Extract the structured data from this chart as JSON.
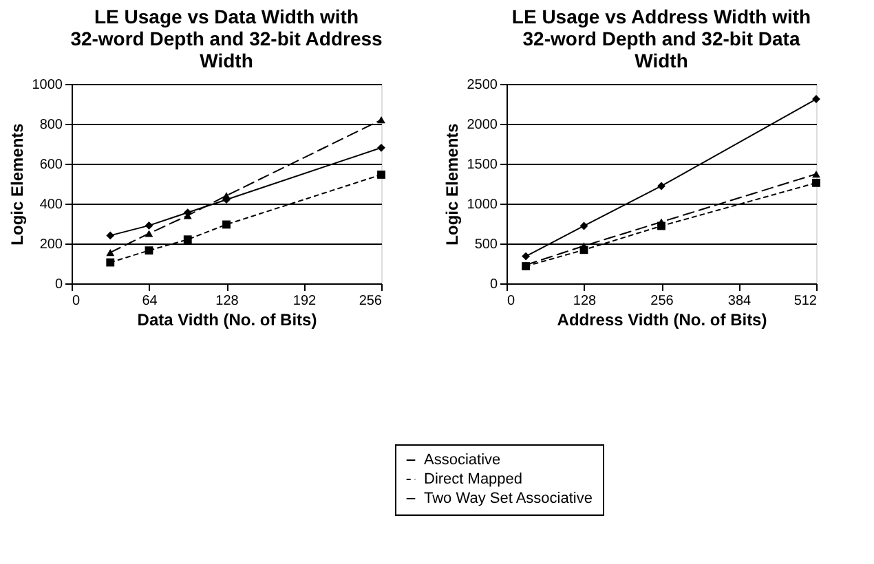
{
  "chart_data": [
    {
      "type": "line",
      "title": "LE Usage vs Data Width with 32-word Depth and 32-bit Address Width",
      "xlabel": "Data Vidth (No. of Bits)",
      "ylabel": "Logic Elements",
      "x": [
        32,
        64,
        96,
        128,
        256
      ],
      "xlim": [
        0,
        256
      ],
      "xticks": [
        0,
        64,
        128,
        192,
        256
      ],
      "ylim": [
        0,
        1000
      ],
      "yticks": [
        0,
        200,
        400,
        600,
        800,
        1000
      ],
      "grid": "y",
      "legend": "bottom",
      "series": [
        {
          "name": "Associative",
          "color": "#000000",
          "marker": "diamond",
          "line_style": "solid",
          "values": [
            240,
            290,
            355,
            420,
            680
          ]
        },
        {
          "name": "Direct Mapped",
          "color": "#000000",
          "marker": "square",
          "line_style": "dotted",
          "values": [
            105,
            165,
            220,
            295,
            545
          ]
        },
        {
          "name": "Two Way Set Associative",
          "color": "#000000",
          "marker": "triangle",
          "line_style": "dashed",
          "values": [
            155,
            250,
            340,
            440,
            820
          ]
        }
      ]
    },
    {
      "type": "line",
      "title": "LE Usage vs Address Width with 32-word Depth and 32-bit Data Width",
      "xlabel": "Address Vidth (No. of Bits)",
      "ylabel": "Logic Elements",
      "x": [
        32,
        128,
        256,
        512
      ],
      "xlim": [
        0,
        512
      ],
      "xticks": [
        0,
        128,
        256,
        384,
        512
      ],
      "ylim": [
        0,
        2500
      ],
      "yticks": [
        0,
        500,
        1000,
        1500,
        2000,
        2500
      ],
      "grid": "y",
      "legend": "bottom",
      "series": [
        {
          "name": "Associative",
          "color": "#000000",
          "marker": "diamond",
          "line_style": "solid",
          "values": [
            340,
            720,
            1220,
            2310
          ]
        },
        {
          "name": "Direct Mapped",
          "color": "#000000",
          "marker": "square",
          "line_style": "dotted",
          "values": [
            215,
            420,
            720,
            1260
          ]
        },
        {
          "name": "Two Way Set Associative",
          "color": "#000000",
          "marker": "triangle",
          "line_style": "dashed",
          "values": [
            230,
            470,
            770,
            1370
          ]
        }
      ]
    }
  ]
}
